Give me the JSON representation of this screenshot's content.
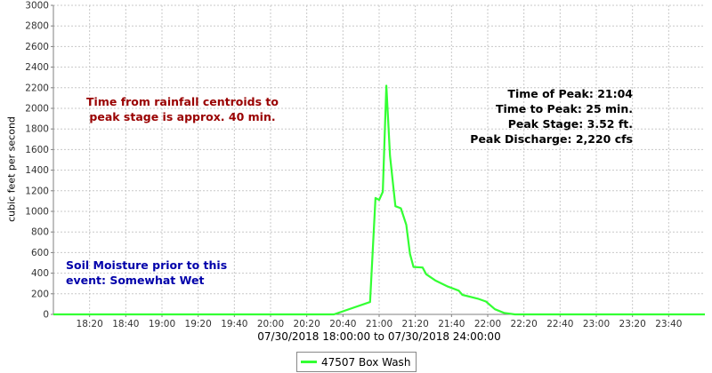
{
  "chart_data": {
    "type": "line",
    "ylabel": "cubic feet per second",
    "xlabel": "07/30/2018 18:00:00 to 07/30/2018 24:00:00",
    "ylim": [
      0,
      3000
    ],
    "y_ticks": [
      "0",
      "200",
      "400",
      "600",
      "800",
      "1000",
      "1200",
      "1400",
      "1600",
      "1800",
      "2000",
      "2200",
      "2400",
      "2600",
      "2800",
      "3000"
    ],
    "x_ticks": [
      "18:20",
      "18:40",
      "19:00",
      "19:20",
      "19:40",
      "20:00",
      "20:20",
      "20:40",
      "21:00",
      "21:20",
      "21:40",
      "22:00",
      "22:20",
      "22:40",
      "23:00",
      "23:20",
      "23:40"
    ],
    "grid": true,
    "legend": "bottom",
    "series": [
      {
        "name": "47507 Box Wash",
        "color": "#33ff33",
        "points": [
          [
            "18:00",
            0
          ],
          [
            "20:35",
            0
          ],
          [
            "20:55",
            120
          ],
          [
            "20:58",
            1130
          ],
          [
            "21:00",
            1110
          ],
          [
            "21:02",
            1190
          ],
          [
            "21:04",
            2220
          ],
          [
            "21:06",
            1540
          ],
          [
            "21:09",
            1050
          ],
          [
            "21:12",
            1030
          ],
          [
            "21:15",
            870
          ],
          [
            "21:17",
            590
          ],
          [
            "21:19",
            460
          ],
          [
            "21:24",
            455
          ],
          [
            "21:26",
            390
          ],
          [
            "21:31",
            330
          ],
          [
            "21:38",
            270
          ],
          [
            "21:44",
            230
          ],
          [
            "21:46",
            190
          ],
          [
            "21:55",
            150
          ],
          [
            "21:59",
            125
          ],
          [
            "22:04",
            50
          ],
          [
            "22:09",
            15
          ],
          [
            "22:15",
            0
          ],
          [
            "24:00",
            0
          ]
        ]
      }
    ],
    "annotations": {
      "red": [
        "Time from rainfall centroids to",
        "peak stage is approx. 40 min."
      ],
      "black": [
        "Time of Peak: 21:04",
        "Time to Peak: 25 min.",
        "Peak Stage: 3.52 ft.",
        "Peak Discharge: 2,220 cfs"
      ],
      "blue": [
        "Soil Moisture prior to this",
        "event: Somewhat Wet"
      ]
    }
  }
}
